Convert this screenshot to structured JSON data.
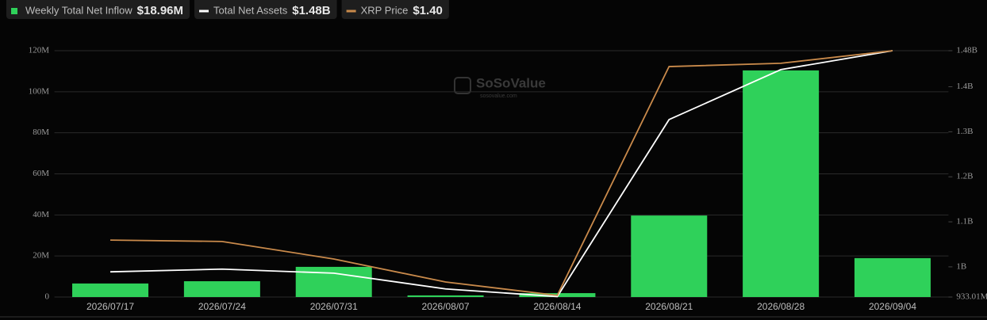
{
  "chart_data": {
    "type": "bar",
    "watermark": "SoSoValue",
    "watermark_sub": "sosovalue.com",
    "categories": [
      "2026/07/17",
      "2026/07/24",
      "2026/07/31",
      "2026/08/07",
      "2026/08/14",
      "2026/08/21",
      "2026/08/28",
      "2026/09/04"
    ],
    "series": [
      {
        "name": "Weekly Total Net Inflow",
        "legend_value": "$18.96M",
        "type": "bar",
        "color": "#2fd15a",
        "axis": "y",
        "values": [
          6600000,
          7700000,
          14700000,
          800000,
          1900000,
          39700000,
          110400000,
          18960000
        ]
      },
      {
        "name": "Total Net Assets",
        "legend_value": "$1.48B",
        "type": "line",
        "color": "#ffffff",
        "axis": "y2",
        "values": [
          989000000,
          995000000,
          986000000,
          951000000,
          934000000,
          1327000000,
          1438000000,
          1480000000
        ]
      },
      {
        "name": "XRP Price",
        "legend_value": "$1.40",
        "type": "line",
        "color": "#c98a4b",
        "axis": "y3",
        "values": [
          0.708,
          0.703,
          0.639,
          0.555,
          0.506,
          1.342,
          1.354,
          1.4
        ]
      }
    ],
    "ylim": [
      0,
      120000000
    ],
    "yticks": [
      {
        "value": 0,
        "label": "0"
      },
      {
        "value": 20000000,
        "label": "20M"
      },
      {
        "value": 40000000,
        "label": "40M"
      },
      {
        "value": 60000000,
        "label": "60M"
      },
      {
        "value": 80000000,
        "label": "80M"
      },
      {
        "value": 100000000,
        "label": "100M"
      },
      {
        "value": 120000000,
        "label": "120M"
      }
    ],
    "y2lim": [
      933010000,
      1480000000
    ],
    "y2ticks": [
      {
        "value": 933010000,
        "label": "933.01M"
      },
      {
        "value": 1000000000,
        "label": "1B"
      },
      {
        "value": 1100000000,
        "label": "1.1B"
      },
      {
        "value": 1200000000,
        "label": "1.2B"
      },
      {
        "value": 1300000000,
        "label": "1.3B"
      },
      {
        "value": 1400000000,
        "label": "1.4B"
      },
      {
        "value": 1480000000,
        "label": "1.48B"
      }
    ],
    "y3lim": [
      0.5,
      1.4
    ],
    "grid": true
  }
}
